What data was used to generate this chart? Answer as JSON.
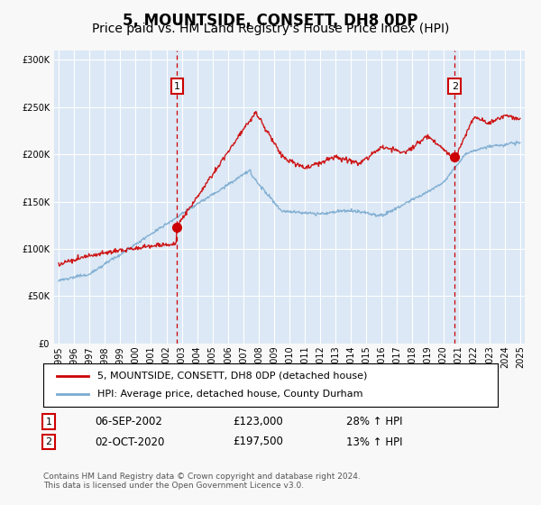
{
  "title": "5, MOUNTSIDE, CONSETT, DH8 0DP",
  "subtitle": "Price paid vs. HM Land Registry's House Price Index (HPI)",
  "legend_line1": "5, MOUNTSIDE, CONSETT, DH8 0DP (detached house)",
  "legend_line2": "HPI: Average price, detached house, County Durham",
  "annotation1_date": "06-SEP-2002",
  "annotation1_price": "£123,000",
  "annotation1_hpi": "28% ↑ HPI",
  "annotation2_date": "02-OCT-2020",
  "annotation2_price": "£197,500",
  "annotation2_hpi": "13% ↑ HPI",
  "footer": "Contains HM Land Registry data © Crown copyright and database right 2024.\nThis data is licensed under the Open Government Licence v3.0.",
  "fig_bg_color": "#f8f8f8",
  "plot_bg_color": "#dce8f5",
  "red_line_color": "#cc0000",
  "blue_line_color": "#7aaad0",
  "grid_color": "#ffffff",
  "annotation_box_color": "#cc0000",
  "vline_color": "#cc0000",
  "title_fontsize": 12,
  "subtitle_fontsize": 10,
  "ylim": [
    0,
    310000
  ],
  "yticks": [
    0,
    50000,
    100000,
    150000,
    200000,
    250000,
    300000
  ],
  "sale1_year": 2002.7,
  "sale1_price": 123000,
  "sale2_year": 2020.75,
  "sale2_price": 197500,
  "xlim_left": 1994.7,
  "xlim_right": 2025.3
}
